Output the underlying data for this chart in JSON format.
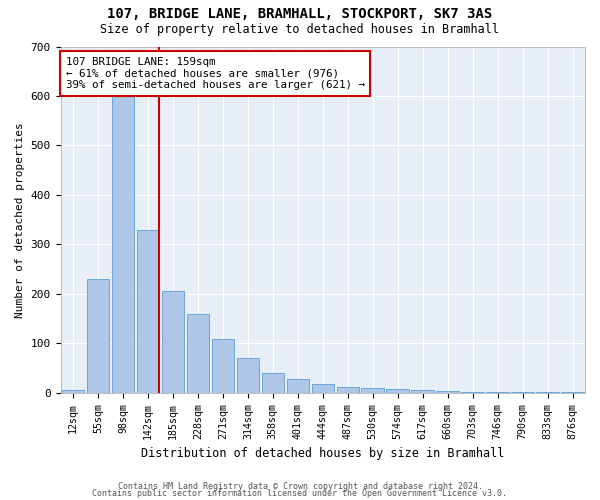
{
  "title": "107, BRIDGE LANE, BRAMHALL, STOCKPORT, SK7 3AS",
  "subtitle": "Size of property relative to detached houses in Bramhall",
  "xlabel": "Distribution of detached houses by size in Bramhall",
  "ylabel": "Number of detached properties",
  "footer_line1": "Contains HM Land Registry data © Crown copyright and database right 2024.",
  "footer_line2": "Contains public sector information licensed under the Open Government Licence v3.0.",
  "bar_labels": [
    "12sqm",
    "55sqm",
    "98sqm",
    "142sqm",
    "185sqm",
    "228sqm",
    "271sqm",
    "314sqm",
    "358sqm",
    "401sqm",
    "444sqm",
    "487sqm",
    "530sqm",
    "574sqm",
    "617sqm",
    "660sqm",
    "703sqm",
    "746sqm",
    "790sqm",
    "833sqm",
    "876sqm"
  ],
  "bar_values": [
    5,
    230,
    615,
    330,
    205,
    160,
    110,
    70,
    40,
    28,
    18,
    13,
    9,
    7,
    5,
    3,
    2,
    2,
    1,
    1,
    1
  ],
  "bar_color": "#aec6e8",
  "bar_edge_color": "#5a9fd4",
  "bg_color": "#e8eef6",
  "grid_color": "#ffffff",
  "vline_color": "#cc0000",
  "annotation_text": "107 BRIDGE LANE: 159sqm\n← 61% of detached houses are smaller (976)\n39% of semi-detached houses are larger (621) →",
  "annotation_box_color": "#cc0000",
  "ylim": [
    0,
    700
  ],
  "yticks": [
    0,
    100,
    200,
    300,
    400,
    500,
    600,
    700
  ]
}
